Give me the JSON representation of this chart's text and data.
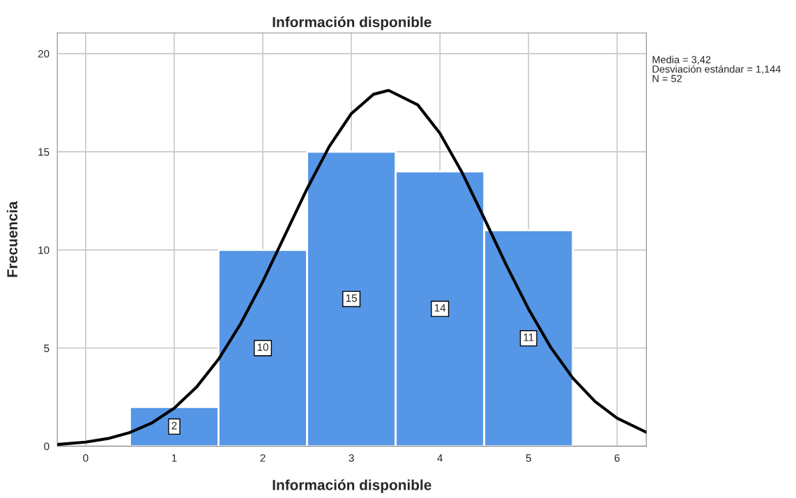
{
  "chart_data": {
    "type": "histogram",
    "title": "Información disponible",
    "xlabel": "Información disponible",
    "ylabel": "Frecuencia",
    "xlim": [
      -0.32,
      6.33
    ],
    "ylim": [
      0,
      21.06
    ],
    "xticks": [
      0,
      1,
      2,
      3,
      4,
      5,
      6
    ],
    "yticks": [
      0,
      5,
      10,
      15,
      20
    ],
    "grid": true,
    "series": [
      {
        "color": "#5596e6",
        "bins": [
          0.5,
          1.5,
          2.5,
          3.5,
          4.5,
          5.5
        ],
        "values": [
          2,
          10,
          15,
          14,
          11
        ],
        "value_labels": [
          "2",
          "10",
          "15",
          "14",
          "11"
        ]
      },
      {
        "type": "line",
        "color": "#000000",
        "x": [
          -0.32,
          0,
          0.25,
          0.5,
          0.75,
          1,
          1.25,
          1.5,
          1.75,
          2,
          2.25,
          2.5,
          2.75,
          3,
          3.25,
          3.42,
          3.75,
          4,
          4.25,
          4.5,
          4.75,
          5,
          5.25,
          5.5,
          5.75,
          6,
          6.33
        ],
        "values": [
          0.09,
          0.21,
          0.39,
          0.7,
          1.19,
          1.94,
          3.0,
          4.43,
          6.24,
          8.39,
          10.75,
          13.12,
          15.27,
          16.95,
          17.93,
          18.13,
          17.39,
          15.94,
          13.94,
          11.61,
          9.22,
          6.99,
          5.04,
          3.47,
          2.28,
          1.43,
          0.71
        ]
      }
    ],
    "annotations": [
      "Media = 3,42",
      "Desviación estándar = 1,144",
      "N = 52"
    ]
  }
}
